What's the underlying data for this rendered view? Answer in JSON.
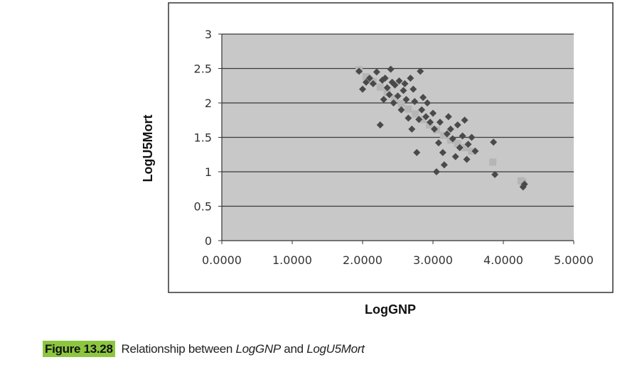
{
  "caption": {
    "figure_label": "Figure 13.28",
    "text_before": "Relationship between ",
    "term_a": "LogGNP",
    "text_mid": " and ",
    "term_b": "LogU5Mort"
  },
  "colors": {
    "plot_bg": "#c8c8c8",
    "grid": "#3a3a3a",
    "observed_marker": "#4a4a4a",
    "predicted_marker": "#b5b5b5",
    "caption_highlight": "#8cc63f"
  },
  "chart_data": {
    "type": "scatter",
    "title": "",
    "xlabel": "LogGNP",
    "ylabel": "LogU5Mort",
    "xlim": [
      0,
      5
    ],
    "ylim": [
      0,
      3
    ],
    "x_ticks": [
      "0.0000",
      "1.0000",
      "2.0000",
      "3.0000",
      "4.0000",
      "5.0000"
    ],
    "y_ticks": [
      "0",
      "0.5",
      "1",
      "1.5",
      "2",
      "2.5",
      "3"
    ],
    "grid": "horizontal",
    "legend": "none",
    "series": [
      {
        "marker": "diamond",
        "points": [
          [
            1.95,
            2.46
          ],
          [
            2.0,
            2.2
          ],
          [
            2.05,
            2.3
          ],
          [
            2.1,
            2.36
          ],
          [
            2.15,
            2.28
          ],
          [
            2.2,
            2.45
          ],
          [
            2.25,
            1.68
          ],
          [
            2.28,
            2.33
          ],
          [
            2.3,
            2.05
          ],
          [
            2.32,
            2.36
          ],
          [
            2.35,
            2.22
          ],
          [
            2.38,
            2.12
          ],
          [
            2.4,
            2.49
          ],
          [
            2.42,
            2.3
          ],
          [
            2.44,
            2.0
          ],
          [
            2.46,
            2.26
          ],
          [
            2.5,
            2.1
          ],
          [
            2.52,
            2.32
          ],
          [
            2.55,
            1.9
          ],
          [
            2.58,
            2.18
          ],
          [
            2.6,
            2.28
          ],
          [
            2.62,
            2.05
          ],
          [
            2.65,
            1.78
          ],
          [
            2.68,
            2.36
          ],
          [
            2.7,
            1.62
          ],
          [
            2.72,
            2.2
          ],
          [
            2.74,
            2.02
          ],
          [
            2.77,
            1.28
          ],
          [
            2.8,
            1.76
          ],
          [
            2.82,
            2.46
          ],
          [
            2.84,
            1.9
          ],
          [
            2.86,
            2.08
          ],
          [
            2.9,
            1.8
          ],
          [
            2.92,
            2.0
          ],
          [
            2.96,
            1.72
          ],
          [
            3.0,
            1.85
          ],
          [
            3.02,
            1.62
          ],
          [
            3.05,
            1.0
          ],
          [
            3.08,
            1.42
          ],
          [
            3.1,
            1.72
          ],
          [
            3.14,
            1.28
          ],
          [
            3.16,
            1.1
          ],
          [
            3.2,
            1.55
          ],
          [
            3.22,
            1.8
          ],
          [
            3.25,
            1.62
          ],
          [
            3.28,
            1.48
          ],
          [
            3.32,
            1.22
          ],
          [
            3.35,
            1.68
          ],
          [
            3.38,
            1.35
          ],
          [
            3.42,
            1.52
          ],
          [
            3.45,
            1.75
          ],
          [
            3.48,
            1.18
          ],
          [
            3.5,
            1.4
          ],
          [
            3.55,
            1.5
          ],
          [
            3.6,
            1.3
          ],
          [
            3.86,
            1.43
          ],
          [
            3.88,
            0.96
          ],
          [
            4.28,
            0.78
          ],
          [
            4.3,
            0.82
          ]
        ]
      },
      {
        "marker": "square",
        "points": [
          [
            1.95,
            2.48
          ],
          [
            2.05,
            2.38
          ],
          [
            2.15,
            2.31
          ],
          [
            2.25,
            2.23
          ],
          [
            2.35,
            2.15
          ],
          [
            2.45,
            2.07
          ],
          [
            2.55,
            1.99
          ],
          [
            2.65,
            1.91
          ],
          [
            2.75,
            1.84
          ],
          [
            2.85,
            1.76
          ],
          [
            2.95,
            1.68
          ],
          [
            3.05,
            1.61
          ],
          [
            3.15,
            1.53
          ],
          [
            3.25,
            1.46
          ],
          [
            3.35,
            1.41
          ],
          [
            3.45,
            1.35
          ],
          [
            3.55,
            1.3
          ],
          [
            3.85,
            1.14
          ],
          [
            4.25,
            0.87
          ],
          [
            4.28,
            0.85
          ]
        ]
      }
    ]
  }
}
